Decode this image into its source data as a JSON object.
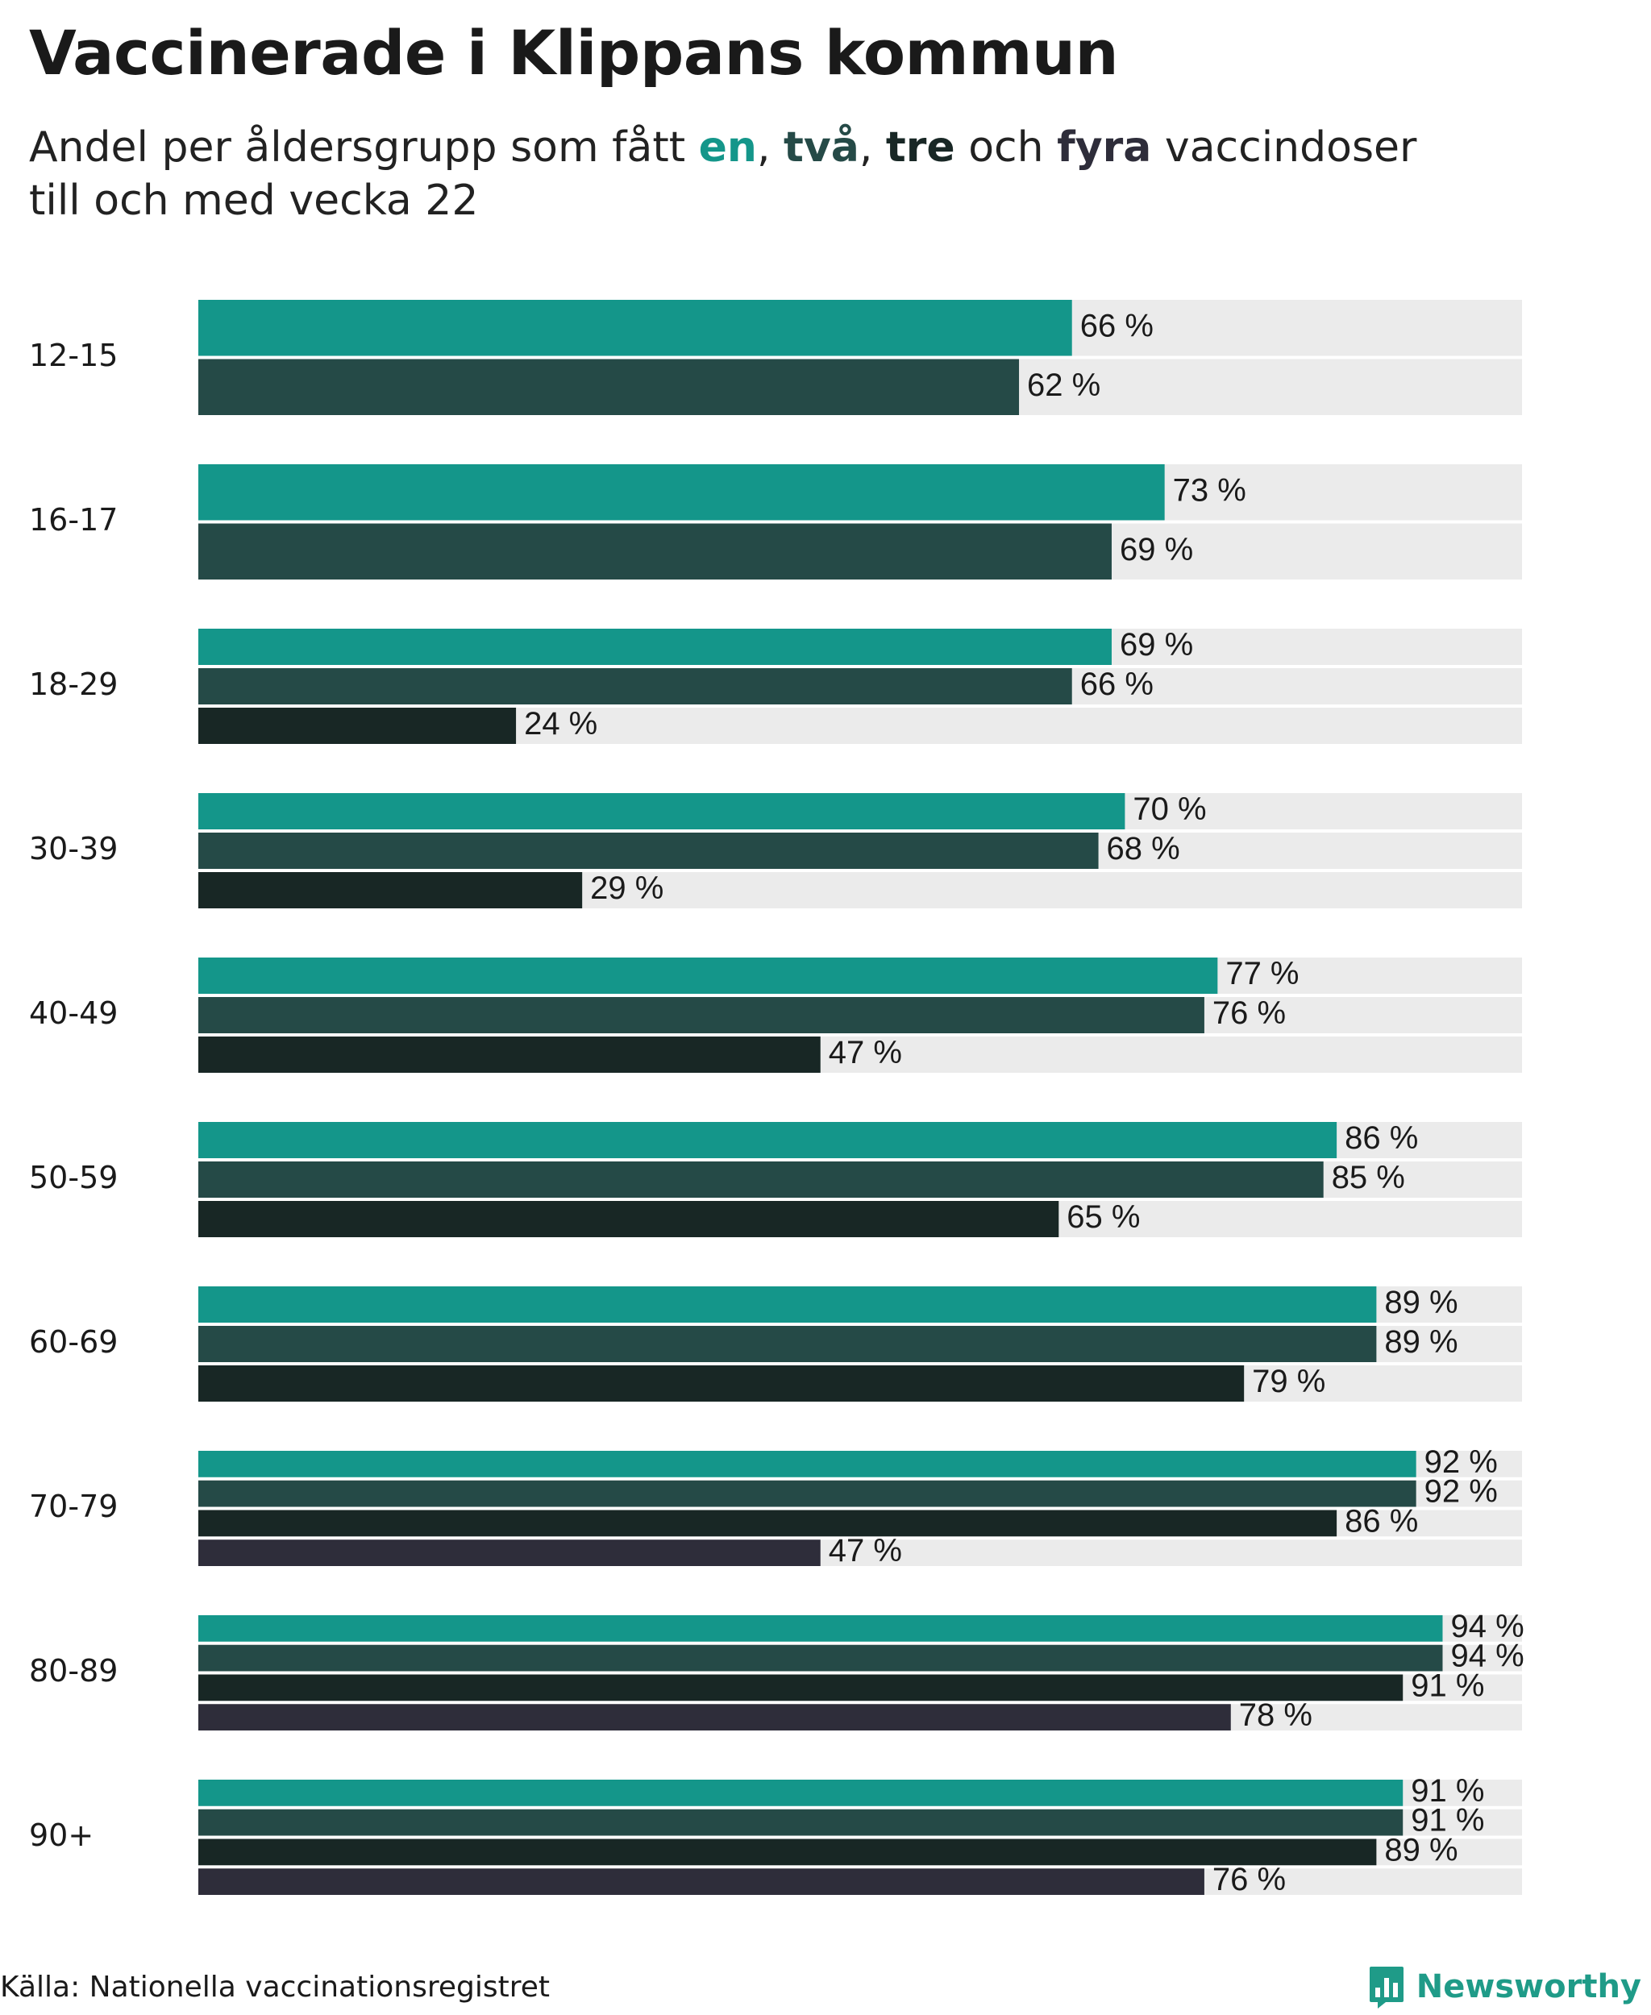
{
  "header": {
    "title": "Vaccinerade i Klippans kommun",
    "subtitle_pre": "Andel per åldersgrupp som fått ",
    "dose1": "en",
    "sep1": ", ",
    "dose2": "två",
    "sep2": ", ",
    "dose3": "tre",
    "sep3": " och ",
    "dose4": "fyra",
    "subtitle_post1": " vaccindoser",
    "subtitle_line2": "till och med vecka 22"
  },
  "colors": {
    "dose1": "#14968a",
    "dose2": "#254a47",
    "dose3": "#182725",
    "dose4": "#2e2d3a",
    "track": "#ebebeb",
    "brand": "#1f9b88"
  },
  "footer": {
    "source": "Källa: Nationella vaccinationsregistret",
    "brand": "Newsworthy",
    "brand_icon": "bar-chart-icon"
  },
  "chart_data": {
    "type": "bar",
    "orientation": "horizontal",
    "xlim": [
      0,
      100
    ],
    "unit": "%",
    "categories": [
      "12-15",
      "16-17",
      "18-29",
      "30-39",
      "40-49",
      "50-59",
      "60-69",
      "70-79",
      "80-89",
      "90+"
    ],
    "series": [
      {
        "name": "en",
        "color": "#14968a",
        "values": [
          66,
          73,
          69,
          70,
          77,
          86,
          89,
          92,
          94,
          91
        ]
      },
      {
        "name": "två",
        "color": "#254a47",
        "values": [
          62,
          69,
          66,
          68,
          76,
          85,
          89,
          92,
          94,
          91
        ]
      },
      {
        "name": "tre",
        "color": "#182725",
        "values": [
          null,
          null,
          24,
          29,
          47,
          65,
          79,
          86,
          91,
          89
        ]
      },
      {
        "name": "fyra",
        "color": "#2e2d3a",
        "values": [
          null,
          null,
          null,
          null,
          null,
          null,
          null,
          47,
          78,
          76
        ]
      }
    ],
    "labels": [
      [
        "66 %",
        "62 %",
        null,
        null
      ],
      [
        "73 %",
        "69 %",
        null,
        null
      ],
      [
        "69 %",
        "66 %",
        "24 %",
        null
      ],
      [
        "70 %",
        "68 %",
        "29 %",
        null
      ],
      [
        "77 %",
        "76 %",
        "47 %",
        null
      ],
      [
        "86 %",
        "85 %",
        "65 %",
        null
      ],
      [
        "89 %",
        "89 %",
        "79 %",
        null
      ],
      [
        "92 %",
        "92 %",
        "86 %",
        "47 %"
      ],
      [
        "94 %",
        "94 %",
        "91 %",
        "78 %"
      ],
      [
        "91 %",
        "91 %",
        "89 %",
        "76 %"
      ]
    ]
  }
}
